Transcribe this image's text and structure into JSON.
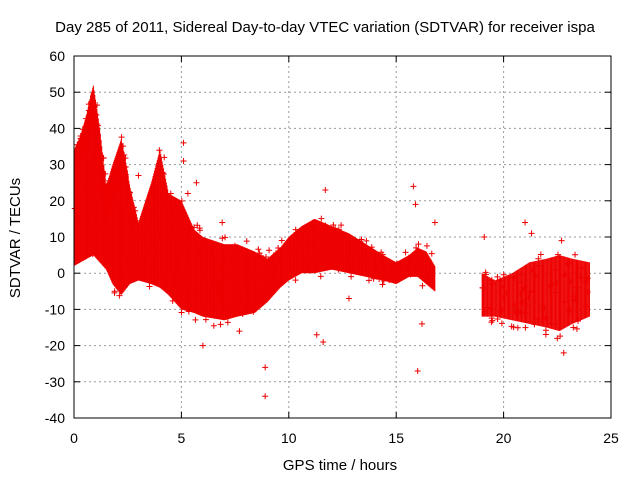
{
  "chart_data": {
    "type": "scatter",
    "title": "Day 285 of 2011, Sidereal Day-to-day VTEC variation (SDTVAR) for receiver ispa",
    "xlabel": "GPS time / hours",
    "ylabel": "SDTVAR / TECUs",
    "xlim": [
      0,
      25
    ],
    "ylim": [
      -40,
      60
    ],
    "xticks": [
      "0",
      "5",
      "10",
      "15",
      "20",
      "25"
    ],
    "yticks": [
      "-40",
      "-30",
      "-20",
      "-10",
      "0",
      "10",
      "20",
      "30",
      "40",
      "50",
      "60"
    ],
    "grid": true,
    "marker": "+",
    "color": "#ee0000",
    "series": [
      {
        "name": "SDTVAR",
        "envelope": [
          {
            "x": 0.0,
            "lo": 2,
            "hi": 34
          },
          {
            "x": 0.3,
            "lo": 3,
            "hi": 38
          },
          {
            "x": 0.6,
            "lo": 4,
            "hi": 44
          },
          {
            "x": 0.9,
            "lo": 5,
            "hi": 52
          },
          {
            "x": 1.2,
            "lo": 3,
            "hi": 40
          },
          {
            "x": 1.5,
            "lo": 1,
            "hi": 24
          },
          {
            "x": 1.8,
            "lo": -3,
            "hi": 30
          },
          {
            "x": 2.2,
            "lo": -6,
            "hi": 37
          },
          {
            "x": 2.6,
            "lo": -3,
            "hi": 24
          },
          {
            "x": 3.0,
            "lo": -2,
            "hi": 14
          },
          {
            "x": 3.6,
            "lo": -3,
            "hi": 25
          },
          {
            "x": 4.0,
            "lo": -4,
            "hi": 34
          },
          {
            "x": 4.4,
            "lo": -6,
            "hi": 22
          },
          {
            "x": 5.0,
            "lo": -10,
            "hi": 20
          },
          {
            "x": 5.6,
            "lo": -11,
            "hi": 12
          },
          {
            "x": 6.0,
            "lo": -12,
            "hi": 10
          },
          {
            "x": 7.0,
            "lo": -13,
            "hi": 8
          },
          {
            "x": 7.6,
            "lo": -12,
            "hi": 8
          },
          {
            "x": 8.4,
            "lo": -11,
            "hi": 6
          },
          {
            "x": 9.0,
            "lo": -8,
            "hi": 4
          },
          {
            "x": 9.6,
            "lo": -4,
            "hi": 7
          },
          {
            "x": 10.0,
            "lo": -2,
            "hi": 10
          },
          {
            "x": 10.6,
            "lo": 0,
            "hi": 13
          },
          {
            "x": 11.2,
            "lo": 0,
            "hi": 15
          },
          {
            "x": 12.0,
            "lo": 1,
            "hi": 13
          },
          {
            "x": 12.8,
            "lo": 0,
            "hi": 11
          },
          {
            "x": 13.6,
            "lo": -1,
            "hi": 8
          },
          {
            "x": 14.4,
            "lo": -2,
            "hi": 5
          },
          {
            "x": 15.0,
            "lo": -3,
            "hi": 3
          },
          {
            "x": 15.6,
            "lo": -1,
            "hi": 5
          },
          {
            "x": 16.0,
            "lo": -1,
            "hi": 7
          },
          {
            "x": 16.4,
            "lo": -3,
            "hi": 6
          },
          {
            "x": 16.8,
            "lo": -5,
            "hi": 2
          },
          {
            "x": 19.0,
            "lo": -12,
            "hi": 0
          },
          {
            "x": 19.6,
            "lo": -12,
            "hi": -2
          },
          {
            "x": 20.4,
            "lo": -13,
            "hi": 0
          },
          {
            "x": 21.2,
            "lo": -14,
            "hi": 3
          },
          {
            "x": 22.0,
            "lo": -15,
            "hi": 4
          },
          {
            "x": 22.6,
            "lo": -16,
            "hi": 5
          },
          {
            "x": 23.2,
            "lo": -14,
            "hi": 4
          },
          {
            "x": 24.0,
            "lo": -12,
            "hi": 3
          }
        ],
        "band_upper": [
          {
            "x": 0.0,
            "lo": 28,
            "hi": 33
          },
          {
            "x": 0.4,
            "lo": 32,
            "hi": 38
          },
          {
            "x": 0.8,
            "lo": 40,
            "hi": 50
          },
          {
            "x": 1.1,
            "lo": 35,
            "hi": 44
          },
          {
            "x": 1.4,
            "lo": 14,
            "hi": 24
          },
          {
            "x": 1.9,
            "lo": 20,
            "hi": 28
          },
          {
            "x": 2.2,
            "lo": 32,
            "hi": 37
          },
          {
            "x": 2.5,
            "lo": 20,
            "hi": 28
          },
          {
            "x": 2.8,
            "lo": 4,
            "hi": 12
          }
        ],
        "outliers": [
          {
            "x": 8.9,
            "y": -34
          },
          {
            "x": 8.9,
            "y": -26
          },
          {
            "x": 16.0,
            "y": -27
          },
          {
            "x": 15.8,
            "y": 24
          },
          {
            "x": 15.9,
            "y": 19
          },
          {
            "x": 16.8,
            "y": 14
          },
          {
            "x": 5.1,
            "y": 36
          },
          {
            "x": 5.1,
            "y": 31
          },
          {
            "x": 5.7,
            "y": 25
          },
          {
            "x": 5.3,
            "y": 22
          },
          {
            "x": 6.9,
            "y": 14
          },
          {
            "x": 7.7,
            "y": -16
          },
          {
            "x": 6.0,
            "y": -20
          },
          {
            "x": 11.7,
            "y": 23
          },
          {
            "x": 11.6,
            "y": -19
          },
          {
            "x": 11.3,
            "y": -17
          },
          {
            "x": 3.0,
            "y": 27
          },
          {
            "x": 4.2,
            "y": 32
          },
          {
            "x": 21.0,
            "y": 14
          },
          {
            "x": 21.3,
            "y": 11
          },
          {
            "x": 22.7,
            "y": 9
          },
          {
            "x": 22.5,
            "y": -18
          },
          {
            "x": 22.8,
            "y": -22
          },
          {
            "x": 16.2,
            "y": -14
          },
          {
            "x": 19.1,
            "y": 10
          },
          {
            "x": 12.8,
            "y": -7
          }
        ]
      }
    ]
  }
}
